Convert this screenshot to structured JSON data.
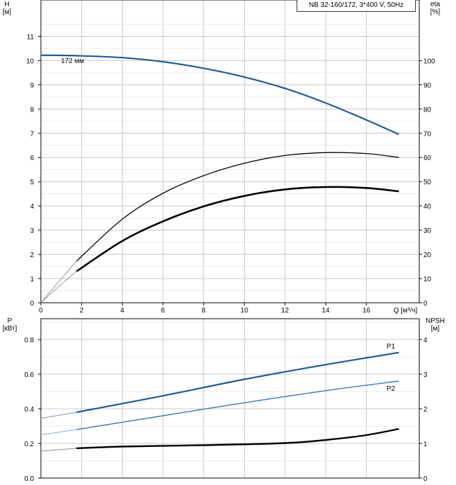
{
  "legend_text": "NB 32-160/172, 3*400 V, 50Hz",
  "colors": {
    "head_curve": "#1f5994",
    "eta_curves": "#000000",
    "p1_curve": "#1f5994",
    "p2_curve": "#3f74b3",
    "npsh_curve": "#000000",
    "grid": "#c8c8c8"
  },
  "chart_data": [
    {
      "type": "line",
      "panel": "top",
      "xlabel": "Q [м³/ч]",
      "ylabel_left": "H\n[м]",
      "ylabel_right": "eta\n[%]",
      "xlim": [
        0,
        18.6
      ],
      "x_ticks": [
        0,
        2,
        4,
        6,
        8,
        10,
        12,
        14,
        16
      ],
      "ylim_left": [
        0,
        12.5
      ],
      "y_ticks_left": [
        0,
        1,
        2,
        3,
        4,
        5,
        6,
        7,
        8,
        9,
        10,
        11
      ],
      "ylim_right": [
        0,
        125
      ],
      "y_ticks_right": [
        0,
        10,
        20,
        30,
        40,
        50,
        60,
        70,
        80,
        90,
        100
      ],
      "grid": true,
      "series": [
        {
          "name": "172 мм",
          "axis": "left",
          "style": "bold",
          "x": [
            0,
            1.75,
            4,
            6,
            8,
            10,
            12,
            14,
            16,
            17.6
          ],
          "y": [
            10.22,
            10.2,
            10.12,
            9.95,
            9.68,
            9.32,
            8.85,
            8.25,
            7.55,
            6.95
          ]
        },
        {
          "axis": "right",
          "style": "thin",
          "x": [
            1.75,
            4,
            6,
            8,
            10,
            12,
            14,
            16,
            17.6
          ],
          "y": [
            17.2,
            34.5,
            45.2,
            52.5,
            57.6,
            60.8,
            62.0,
            61.6,
            60.0
          ]
        },
        {
          "axis": "right",
          "style": "thick",
          "x": [
            1.75,
            4,
            6,
            8,
            10,
            12,
            14,
            16,
            17.6
          ],
          "y": [
            13.0,
            25.5,
            33.6,
            39.8,
            44.1,
            46.8,
            47.8,
            47.4,
            46.0
          ]
        }
      ]
    },
    {
      "type": "line",
      "panel": "bottom",
      "ylabel_left": "P\n[кВт]",
      "ylabel_right": "NPSH\n[м]",
      "xlim": [
        0,
        18.6
      ],
      "ylim_left": [
        0,
        0.92
      ],
      "y_ticks_left": [
        0.0,
        0.2,
        0.4,
        0.6,
        0.8
      ],
      "ylim_right": [
        0,
        4.6
      ],
      "y_ticks_right": [
        0,
        1,
        2,
        3,
        4
      ],
      "grid": true,
      "series": [
        {
          "name": "P1",
          "axis": "left",
          "x": [
            0,
            1.75,
            6,
            10,
            14,
            17.6
          ],
          "y": [
            0.345,
            0.38,
            0.475,
            0.57,
            0.655,
            0.725
          ]
        },
        {
          "name": "P2",
          "axis": "left",
          "x": [
            0,
            1.75,
            6,
            10,
            14,
            17.6
          ],
          "y": [
            0.25,
            0.28,
            0.36,
            0.435,
            0.505,
            0.56
          ]
        },
        {
          "axis": "right",
          "x": [
            0,
            1.75,
            4,
            8,
            12,
            14,
            16,
            17.6
          ],
          "y": [
            0.78,
            0.86,
            0.91,
            0.95,
            1.01,
            1.1,
            1.24,
            1.42
          ]
        }
      ]
    }
  ]
}
